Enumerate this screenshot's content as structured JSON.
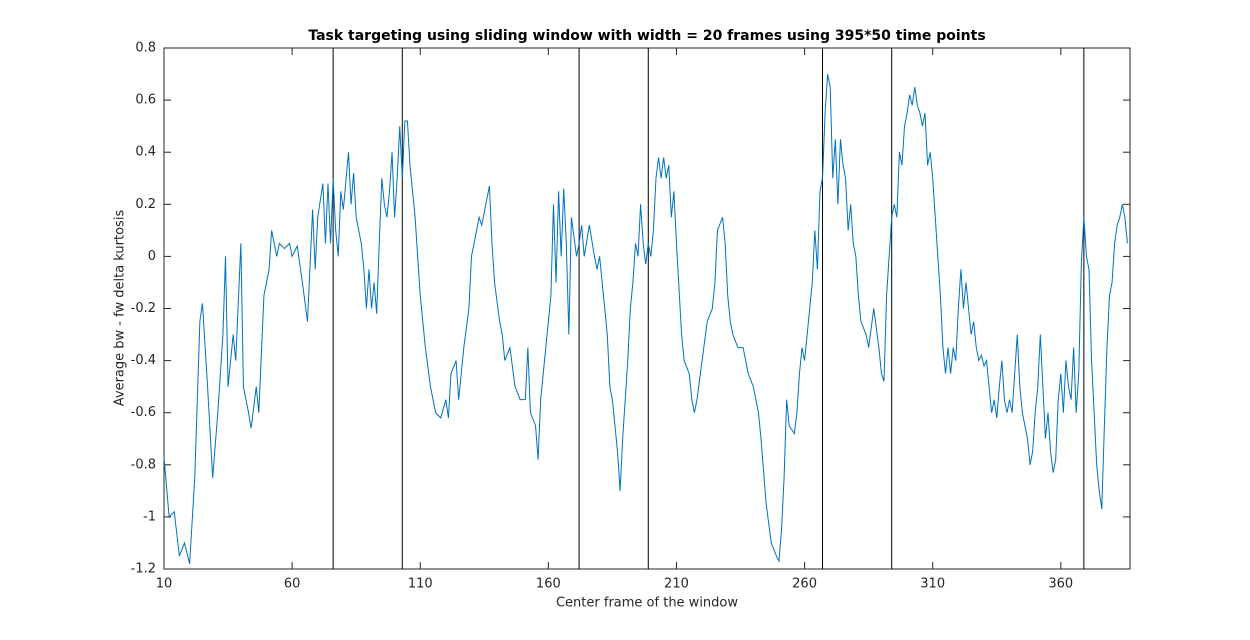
{
  "chart_data": {
    "type": "line",
    "title": "Task targeting using sliding window with width = 20 frames using 395*50 time points",
    "xlabel": "Center frame of the window",
    "ylabel": "Average bw - fw delta kurtosis",
    "color": "#0072bd",
    "xlim": [
      10,
      387
    ],
    "xticks": [
      10,
      60,
      110,
      160,
      210,
      260,
      310,
      360
    ],
    "ylim": [
      -1.2,
      0.8
    ],
    "yticks": [
      -1.2,
      -1,
      -0.8,
      -0.6,
      -0.4,
      -0.2,
      0,
      0.2,
      0.4,
      0.6,
      0.8
    ],
    "vlines": [
      76,
      103,
      172,
      199,
      267,
      294,
      369
    ],
    "x": [
      10,
      12,
      14,
      16,
      18,
      20,
      22,
      24,
      25,
      27,
      29,
      31,
      33,
      34,
      35,
      37,
      38,
      40,
      41,
      43,
      44,
      46,
      47,
      49,
      51,
      52,
      54,
      55,
      57,
      59,
      60,
      62,
      64,
      66,
      68,
      69,
      70,
      72,
      73,
      74,
      75,
      76,
      77,
      78,
      79,
      80,
      82,
      83,
      84,
      85,
      86,
      87,
      88,
      89,
      90,
      91,
      92,
      93,
      94,
      95,
      96,
      97,
      98,
      99,
      100,
      101,
      102,
      103,
      104,
      105,
      106,
      108,
      110,
      112,
      114,
      116,
      118,
      120,
      121,
      122,
      124,
      125,
      127,
      129,
      130,
      132,
      133,
      134,
      136,
      137,
      138,
      139,
      141,
      142,
      143,
      145,
      147,
      149,
      151,
      152,
      153,
      155,
      156,
      157,
      159,
      161,
      162,
      163,
      164,
      165,
      166,
      167,
      168,
      169,
      171,
      172,
      173,
      174,
      176,
      178,
      179,
      180,
      181,
      183,
      184,
      185,
      187,
      188,
      189,
      191,
      192,
      193,
      194,
      195,
      196,
      197,
      198,
      199,
      200,
      201,
      202,
      203,
      204,
      205,
      206,
      207,
      208,
      209,
      210,
      212,
      213,
      215,
      216,
      217,
      218,
      220,
      222,
      224,
      225,
      226,
      228,
      229,
      230,
      231,
      232,
      234,
      236,
      238,
      240,
      242,
      243,
      245,
      247,
      249,
      250,
      251,
      252,
      253,
      254,
      256,
      257,
      258,
      259,
      260,
      261,
      262,
      263,
      264,
      265,
      266,
      267,
      268,
      269,
      270,
      271,
      272,
      273,
      274,
      275,
      276,
      277,
      278,
      279,
      280,
      281,
      282,
      284,
      285,
      287,
      289,
      290,
      291,
      292,
      293,
      294,
      295,
      296,
      297,
      298,
      299,
      300,
      301,
      302,
      303,
      304,
      305,
      306,
      307,
      308,
      309,
      310,
      311,
      312,
      313,
      314,
      315,
      316,
      317,
      318,
      319,
      320,
      321,
      322,
      323,
      324,
      325,
      326,
      327,
      328,
      329,
      330,
      331,
      332,
      333,
      334,
      335,
      336,
      337,
      338,
      339,
      340,
      341,
      342,
      343,
      344,
      345,
      346,
      347,
      348,
      349,
      350,
      351,
      352,
      353,
      354,
      355,
      356,
      357,
      358,
      359,
      360,
      361,
      362,
      363,
      364,
      365,
      366,
      367,
      368,
      369,
      370,
      371,
      372,
      373,
      374,
      375,
      376,
      377,
      378,
      379,
      380,
      381,
      382,
      383,
      384,
      385,
      386
    ],
    "values": [
      -0.77,
      -1.0,
      -0.98,
      -1.15,
      -1.1,
      -1.18,
      -0.85,
      -0.25,
      -0.18,
      -0.5,
      -0.85,
      -0.6,
      -0.3,
      0.0,
      -0.5,
      -0.3,
      -0.4,
      0.05,
      -0.5,
      -0.6,
      -0.66,
      -0.5,
      -0.6,
      -0.15,
      -0.05,
      0.1,
      0.0,
      0.05,
      0.03,
      0.05,
      0.0,
      0.04,
      -0.1,
      -0.25,
      0.18,
      -0.05,
      0.15,
      0.28,
      0.05,
      0.28,
      0.05,
      0.3,
      0.1,
      0.0,
      0.25,
      0.18,
      0.4,
      0.2,
      0.32,
      0.15,
      0.1,
      0.05,
      -0.05,
      -0.2,
      -0.05,
      -0.2,
      -0.1,
      -0.22,
      0.05,
      0.3,
      0.2,
      0.15,
      0.25,
      0.4,
      0.15,
      0.3,
      0.5,
      0.3,
      0.52,
      0.52,
      0.35,
      0.15,
      -0.15,
      -0.35,
      -0.5,
      -0.6,
      -0.62,
      -0.55,
      -0.62,
      -0.45,
      -0.4,
      -0.55,
      -0.35,
      -0.2,
      0.0,
      0.1,
      0.15,
      0.12,
      0.22,
      0.27,
      0.05,
      -0.1,
      -0.25,
      -0.3,
      -0.4,
      -0.35,
      -0.5,
      -0.55,
      -0.55,
      -0.35,
      -0.6,
      -0.65,
      -0.78,
      -0.55,
      -0.35,
      -0.15,
      0.2,
      -0.1,
      0.25,
      0.0,
      0.26,
      0.05,
      -0.3,
      0.15,
      0.0,
      0.05,
      0.12,
      0.0,
      0.12,
      0.0,
      -0.05,
      0.0,
      -0.1,
      -0.3,
      -0.5,
      -0.55,
      -0.75,
      -0.9,
      -0.7,
      -0.4,
      -0.2,
      -0.1,
      0.05,
      0.0,
      0.2,
      0.05,
      -0.03,
      0.05,
      0.0,
      0.1,
      0.3,
      0.38,
      0.3,
      0.38,
      0.3,
      0.35,
      0.15,
      0.25,
      0.05,
      -0.3,
      -0.4,
      -0.45,
      -0.55,
      -0.6,
      -0.55,
      -0.4,
      -0.25,
      -0.2,
      -0.1,
      0.1,
      0.15,
      0.05,
      -0.15,
      -0.25,
      -0.3,
      -0.35,
      -0.35,
      -0.45,
      -0.5,
      -0.6,
      -0.7,
      -0.95,
      -1.1,
      -1.15,
      -1.17,
      -1.05,
      -0.85,
      -0.55,
      -0.65,
      -0.68,
      -0.6,
      -0.45,
      -0.35,
      -0.4,
      -0.3,
      -0.2,
      -0.1,
      0.1,
      -0.05,
      0.25,
      0.3,
      0.55,
      0.7,
      0.65,
      0.3,
      0.45,
      0.2,
      0.45,
      0.35,
      0.3,
      0.1,
      0.2,
      0.05,
      0.0,
      -0.15,
      -0.25,
      -0.3,
      -0.35,
      -0.2,
      -0.35,
      -0.45,
      -0.48,
      -0.15,
      0.0,
      0.15,
      0.2,
      0.15,
      0.4,
      0.35,
      0.5,
      0.55,
      0.62,
      0.58,
      0.65,
      0.58,
      0.55,
      0.5,
      0.55,
      0.35,
      0.4,
      0.3,
      0.15,
      0.0,
      -0.15,
      -0.35,
      -0.45,
      -0.35,
      -0.45,
      -0.35,
      -0.4,
      -0.2,
      -0.05,
      -0.2,
      -0.1,
      -0.2,
      -0.3,
      -0.25,
      -0.35,
      -0.4,
      -0.38,
      -0.42,
      -0.4,
      -0.5,
      -0.6,
      -0.55,
      -0.62,
      -0.5,
      -0.4,
      -0.55,
      -0.6,
      -0.55,
      -0.6,
      -0.45,
      -0.3,
      -0.5,
      -0.6,
      -0.65,
      -0.7,
      -0.8,
      -0.75,
      -0.6,
      -0.5,
      -0.3,
      -0.5,
      -0.7,
      -0.6,
      -0.75,
      -0.83,
      -0.78,
      -0.55,
      -0.45,
      -0.6,
      -0.4,
      -0.5,
      -0.55,
      -0.35,
      -0.6,
      -0.45,
      -0.03,
      0.15,
      0.0,
      -0.05,
      -0.4,
      -0.6,
      -0.8,
      -0.9,
      -0.97,
      -0.65,
      -0.35,
      -0.15,
      -0.1,
      0.05,
      0.12,
      0.15,
      0.2,
      0.15,
      0.05
    ]
  }
}
